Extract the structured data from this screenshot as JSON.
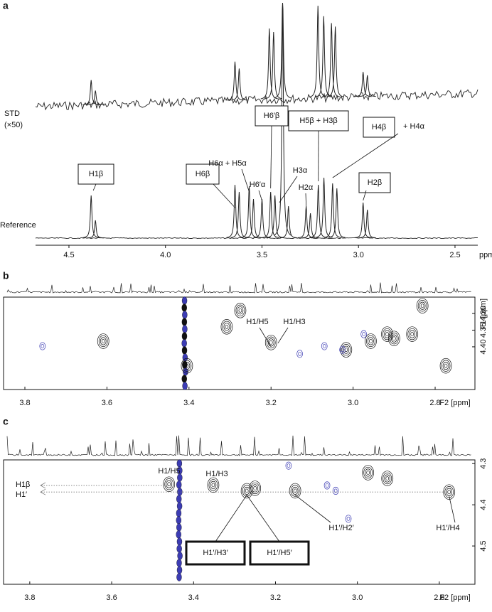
{
  "chart_data": [
    {
      "type": "spectrum",
      "panel": "a",
      "xlabel": "ppm",
      "xlim": [
        4.673,
        2.382
      ],
      "xticks": [
        4.5,
        {
          "value": 4,
          "label": "4.0"
        },
        3.5,
        {
          "value": 3,
          "label": "3.0"
        },
        2.5
      ],
      "series": [
        {
          "name": "STD",
          "note": "(×50)",
          "color": "#222",
          "x": [
            4.385,
            4.363,
            3.64,
            3.618,
            3.462,
            3.44,
            3.393,
            3.21,
            3.18,
            3.14,
            3.12,
            2.976,
            2.954
          ],
          "values": [
            35,
            20,
            55,
            45,
            100,
            95,
            145,
            130,
            115,
            105,
            100,
            35,
            30
          ]
        },
        {
          "name": "Reference",
          "color": "#222",
          "x": [
            4.385,
            4.363,
            3.64,
            3.618,
            3.566,
            3.544,
            3.5,
            3.455,
            3.433,
            3.393,
            3.363,
            3.271,
            3.249,
            3.208,
            3.179,
            3.134,
            3.112,
            2.976,
            2.954
          ],
          "values": [
            60,
            25,
            75,
            65,
            73,
            55,
            55,
            65,
            60,
            330,
            45,
            45,
            35,
            75,
            85,
            77,
            70,
            50,
            40
          ]
        }
      ],
      "annotations": [
        {
          "text": "H1β",
          "x": 4.374,
          "boxed": true
        },
        {
          "text": "H6β",
          "x": 3.64,
          "boxed": true
        },
        {
          "text": "H6α + H5α",
          "x": 3.566
        },
        {
          "text": "H6′α",
          "x": 3.5
        },
        {
          "text": "H6′β",
          "x": 3.455,
          "boxed": true
        },
        {
          "text": "H3α",
          "x": 3.41
        },
        {
          "text": "H5β + H3β",
          "x": 3.208,
          "boxed": true
        },
        {
          "text": "H2α",
          "x": 3.271
        },
        {
          "text": "H4β",
          "boxed": true
        },
        {
          "text": "+ H4α",
          "x": 3.134
        },
        {
          "text": "H2β",
          "x": 2.976,
          "boxed": true
        }
      ]
    },
    {
      "type": "nmr2d",
      "panel": "b",
      "xlabel": "F2 [ppm]",
      "ylabel": "F1 [ppm]",
      "xlim": [
        3.852,
        2.703
      ],
      "xticks": [
        3.8,
        3.6,
        3.4,
        3.2,
        {
          "value": 3,
          "label": "3.0"
        },
        2.8
      ],
      "ylim": [
        4.251,
        4.528
      ],
      "yticks": [
        {
          "value": 4.3,
          "label": "4.30"
        },
        4.35,
        {
          "value": 4.4,
          "label": "4.40"
        }
      ],
      "ridge_x": 3.41,
      "positive": {
        "color": "#111",
        "x": [
          3.609,
          3.308,
          3.275,
          3.2,
          2.957,
          2.917,
          2.9,
          2.856,
          2.774,
          3.405,
          3.017,
          2.831
        ],
        "y": [
          4.383,
          4.34,
          4.291,
          4.387,
          4.383,
          4.362,
          4.375,
          4.362,
          4.457,
          4.457,
          4.409,
          4.277
        ]
      },
      "negative": {
        "color": "#3c3cb4",
        "x": [
          3.757,
          3.13,
          3.07,
          3.026,
          2.974
        ],
        "y": [
          4.398,
          4.421,
          4.398,
          4.409,
          4.362
        ]
      },
      "annotations": [
        {
          "text": "H1/H5",
          "x": 3.2,
          "y": 4.387
        },
        {
          "text": "H1/H3",
          "x": 3.183,
          "y": 4.376
        }
      ]
    },
    {
      "type": "nmr2d",
      "panel": "c",
      "xlabel": "F2 [ppm]",
      "xlim": [
        3.864,
        2.713
      ],
      "xticks": [
        3.8,
        3.6,
        3.4,
        3.2,
        {
          "value": 3,
          "label": "3.0"
        },
        2.8
      ],
      "ylim": [
        4.291,
        4.593
      ],
      "yticks": [
        4.3,
        4.4,
        4.5
      ],
      "ridge_x": 3.435,
      "positive": {
        "color": "#111",
        "x": [
          3.46,
          3.352,
          3.27,
          3.152,
          2.974,
          2.927,
          2.776,
          3.25
        ],
        "y": [
          4.35,
          4.352,
          4.366,
          4.366,
          4.322,
          4.336,
          4.369,
          4.36
        ]
      },
      "negative": {
        "color": "#3c3cb4",
        "x": [
          3.168,
          3.074,
          3.053,
          3.022
        ],
        "y": [
          4.305,
          4.353,
          4.366,
          4.434
        ]
      },
      "annotations": [
        {
          "text": "H1/H5"
        },
        {
          "text": "H1/H3"
        },
        {
          "text": "H1β",
          "x": 3.46,
          "y": 4.353
        },
        {
          "text": "H1′",
          "x": 2.776,
          "y": 4.369
        },
        {
          "text": "H1′/H3′",
          "x": 3.27,
          "y": 4.366,
          "boxed": true
        },
        {
          "text": "H1′/H5′",
          "x": 3.27,
          "y": 4.366,
          "boxed": true
        },
        {
          "text": "H1′/H2′",
          "x": 3.152,
          "y": 4.366
        },
        {
          "text": "H1′/H4",
          "x": 2.776,
          "y": 4.369
        }
      ]
    }
  ]
}
